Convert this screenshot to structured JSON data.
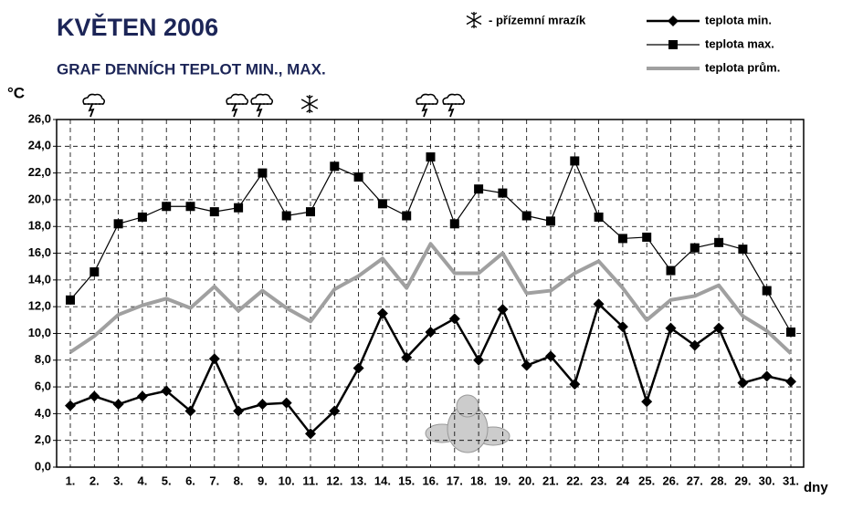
{
  "chart_data": {
    "type": "line",
    "title": "KVĚTEN 2006",
    "subtitle": "GRAF DENNÍCH TEPLOT MIN., MAX.",
    "y_label": "°C",
    "x_label": "dny",
    "frost_note": "- přízemní mrazík",
    "categories": [
      "1.",
      "2.",
      "3.",
      "4.",
      "5.",
      "6.",
      "7.",
      "8.",
      "9.",
      "10.",
      "11.",
      "12.",
      "13.",
      "14.",
      "15.",
      "16.",
      "17.",
      "18.",
      "19.",
      "20.",
      "21.",
      "22.",
      "23.",
      "24",
      "25.",
      "26.",
      "27.",
      "28.",
      "29.",
      "30.",
      "31."
    ],
    "series": [
      {
        "name": "teplota min.",
        "color": "#000000",
        "marker": "diamond",
        "width": 2.5,
        "values": [
          4.6,
          5.3,
          4.7,
          5.3,
          5.7,
          4.2,
          8.1,
          4.2,
          4.7,
          4.8,
          2.5,
          4.2,
          7.4,
          11.5,
          8.2,
          10.1,
          11.1,
          8.0,
          11.8,
          7.6,
          8.3,
          6.2,
          12.2,
          10.5,
          4.9,
          10.4,
          9.1,
          10.4,
          6.3,
          6.8,
          6.4
        ]
      },
      {
        "name": "teplota max.",
        "color": "#000000",
        "marker": "square",
        "width": 1.2,
        "values": [
          12.5,
          14.6,
          18.2,
          18.7,
          19.5,
          19.5,
          19.1,
          19.4,
          22.0,
          18.8,
          19.1,
          22.5,
          21.7,
          19.7,
          18.8,
          23.2,
          18.2,
          20.8,
          20.5,
          18.8,
          18.4,
          22.9,
          18.7,
          17.1,
          17.2,
          14.7,
          16.4,
          16.8,
          16.3,
          13.2,
          10.1
        ]
      },
      {
        "name": "teplota prům.",
        "color": "#a0a0a0",
        "marker": "none",
        "width": 4,
        "values": [
          8.6,
          9.8,
          11.4,
          12.1,
          12.6,
          11.9,
          13.5,
          11.7,
          13.2,
          11.9,
          10.9,
          13.3,
          14.3,
          15.6,
          13.4,
          16.7,
          14.5,
          14.5,
          16.0,
          13.0,
          13.2,
          14.5,
          15.4,
          13.4,
          11.0,
          12.5,
          12.8,
          13.6,
          11.3,
          10.2,
          8.5
        ]
      }
    ],
    "ylim": [
      0,
      26
    ],
    "yticks": [
      {
        "value": 0,
        "label": "0,0"
      },
      {
        "value": 2,
        "label": "2,0"
      },
      {
        "value": 4,
        "label": "4,0"
      },
      {
        "value": 6,
        "label": "6,0"
      },
      {
        "value": 8,
        "label": "8,0"
      },
      {
        "value": 10,
        "label": "10,0"
      },
      {
        "value": 12,
        "label": "12,0"
      },
      {
        "value": 14,
        "label": "14,0"
      },
      {
        "value": 16,
        "label": "16,0"
      },
      {
        "value": 18,
        "label": "18,0"
      },
      {
        "value": 20,
        "label": "20,0"
      },
      {
        "value": 22,
        "label": "22,0"
      },
      {
        "value": 24,
        "label": "24,0"
      },
      {
        "value": 26,
        "label": "26,0"
      }
    ],
    "grid": true
  }
}
